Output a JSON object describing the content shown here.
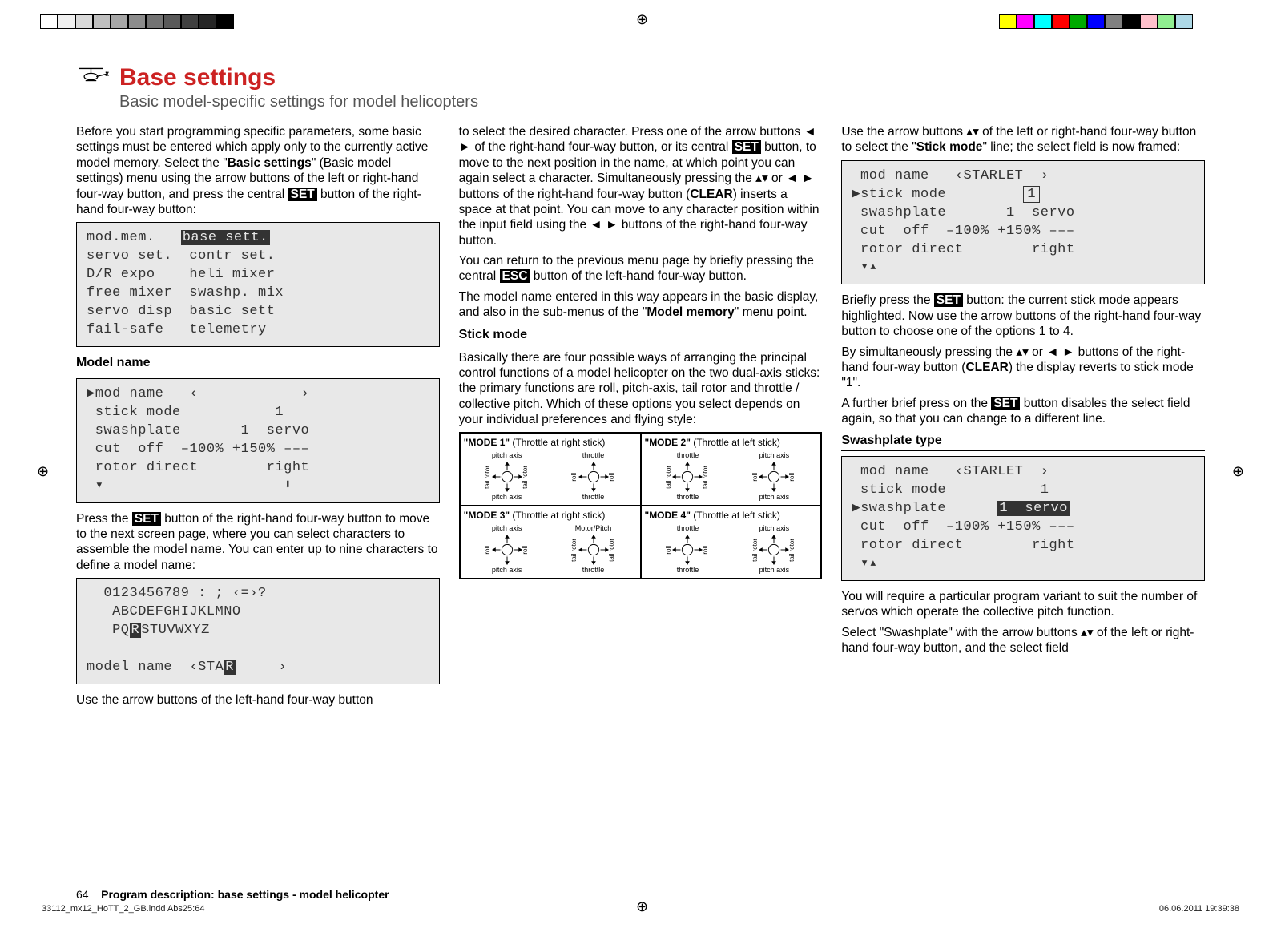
{
  "colorbar_left": [
    "#ffffff",
    "#f0f0f0",
    "#d9d9d9",
    "#bfbfbf",
    "#a6a6a6",
    "#8c8c8c",
    "#737373",
    "#595959",
    "#404040",
    "#262626",
    "#000000"
  ],
  "colorbar_right": [
    "#ffff00",
    "#ff00ff",
    "#00ffff",
    "#ff0000",
    "#00aa00",
    "#0000ff",
    "#808080",
    "#000000",
    "#ffc0cb",
    "#90ee90",
    "#add8e6"
  ],
  "title": "Base settings",
  "subtitle": "Basic model-specific settings for model helicopters",
  "col1": {
    "p1_a": "Before you start programming specific parameters, some basic settings must be entered which apply only to the currently active model memory. Select the \"",
    "p1_b": "Basic settings",
    "p1_c": "\" (Basic model settings) menu using the arrow buttons of the left or right-hand four-way button, and press the central ",
    "p1_set": "SET",
    "p1_d": " button of the right-hand four-way button:",
    "lcd1": {
      "l1a": "mod.mem.   ",
      "l1b": "base sett.",
      "l2": "servo set.  contr set.",
      "l3": "D/R expo    heli mixer",
      "l4": "free mixer  swashp. mix",
      "l5": "servo disp  basic sett",
      "l6": "fail-safe   telemetry"
    },
    "h_modelname": "Model name",
    "lcd2": {
      "l1": "▶mod name   ‹            ›",
      "l2": " stick mode           1",
      "l3": " swashplate       1  servo",
      "l4": " cut  off  –100% +150% –––",
      "l5": " rotor direct        right",
      "l6": " ▾                     ⬇"
    },
    "p2_a": "Press the ",
    "p2_set": "SET",
    "p2_b": " button of the right-hand four-way button to move to the next screen page, where you can select characters to assemble the model name. You can enter up to nine characters to define a model name:",
    "lcd3": {
      "l1": "  0123456789 : ; ‹=›?",
      "l2a": "   ABCDEFGHIJKLMNO",
      "l3a": "   PQ",
      "l3b": "R",
      "l3c": "STUVWXYZ",
      "l4": "",
      "l5a": "model name  ‹STA",
      "l5b": "R",
      "l5c": "     ›"
    },
    "p3": "Use the arrow buttons of the left-hand four-way button"
  },
  "col2": {
    "p1_a": "to select the desired character. Press one of the arrow buttons ◄ ► of the right-hand four-way button, or its central ",
    "p1_set": "SET",
    "p1_b": " button, to move to the next position in the name, at which point you can again select a character. Simultaneously pressing the ▴▾ or ◄ ► buttons of the right-hand four-way button (",
    "p1_clear": "CLEAR",
    "p1_c": ") inserts a space at that point. You can move to any character position within the input field using the ◄ ► buttons of the right-hand four-way button.",
    "p2_a": "You can return to the previous menu page by briefly pressing the central ",
    "p2_esc": "ESC",
    "p2_b": " button of the left-hand four-way button.",
    "p3_a": "The model name entered in this way appears in the basic display, and also in the sub-menus of the \"",
    "p3_b": "Model memory",
    "p3_c": "\" menu point.",
    "h_stick": "Stick mode",
    "p4": "Basically there are four possible ways of arranging the principal control functions of a model helicopter on the two dual-axis sticks: the primary functions are roll, pitch-axis, tail rotor and throttle / collective pitch. Which of these options you select depends on your individual preferences and flying style:",
    "modes": {
      "m1_t": "\"MODE 1\"",
      "m1_s": " (Throttle at right stick)",
      "m2_t": "\"MODE 2\"",
      "m2_s": " (Throttle at left stick)",
      "m3_t": "\"MODE 3\"",
      "m3_s": " (Throttle at right stick)",
      "m4_t": "\"MODE 4\"",
      "m4_s": " (Throttle at left stick)",
      "lab_pitch": "pitch axis",
      "lab_throttle": "throttle",
      "lab_motorpitch": "Motor/Pitch",
      "lab_tail": "tail rotor",
      "lab_roll": "roll"
    }
  },
  "col3": {
    "p1_a": "Use the arrow buttons ▴▾ of the left or right-hand four-way button to select the \"",
    "p1_b": "Stick mode",
    "p1_c": "\" line; the select field is now framed:",
    "lcd1": {
      "l1": " mod name   ‹STARLET  ›",
      "l2a": "▶stick mode         ",
      "l2b": "1",
      "l3": " swashplate       1  servo",
      "l4": " cut  off  –100% +150% –––",
      "l5": " rotor direct        right",
      "l6": " ▾▴"
    },
    "p2_a": "Briefly press the ",
    "p2_set": "SET",
    "p2_b": " button: the current stick mode appears highlighted. Now use the arrow buttons of the right-hand four-way button to choose one of the options 1 to 4.",
    "p3_a": "By simultaneously pressing the ▴▾ or ◄ ► buttons of the right-hand four-way button (",
    "p3_clear": "CLEAR",
    "p3_b": ") the display reverts to stick mode \"1\".",
    "p4_a": "A further brief press on the ",
    "p4_set": "SET",
    "p4_b": " button disables the select field again, so that you can change to a different line.",
    "h_swash": "Swashplate type",
    "lcd2": {
      "l1": " mod name   ‹STARLET  ›",
      "l2": " stick mode           1",
      "l3a": "▶swashplate      ",
      "l3b": "1  servo",
      "l4": " cut  off  –100% +150% –––",
      "l5": " rotor direct        right",
      "l6": " ▾▴"
    },
    "p5": "You will require a particular program variant to suit the number of servos which operate the collective pitch function.",
    "p6": "Select \"Swashplate\" with the arrow buttons ▴▾ of the left or right-hand four-way button, and the select field"
  },
  "footer": {
    "pagenum": "64",
    "label": "Program description: base settings - model helicopter",
    "docfile": "33112_mx12_HoTT_2_GB.indd   Abs25:64",
    "docdate": "06.06.2011   19:39:38"
  }
}
